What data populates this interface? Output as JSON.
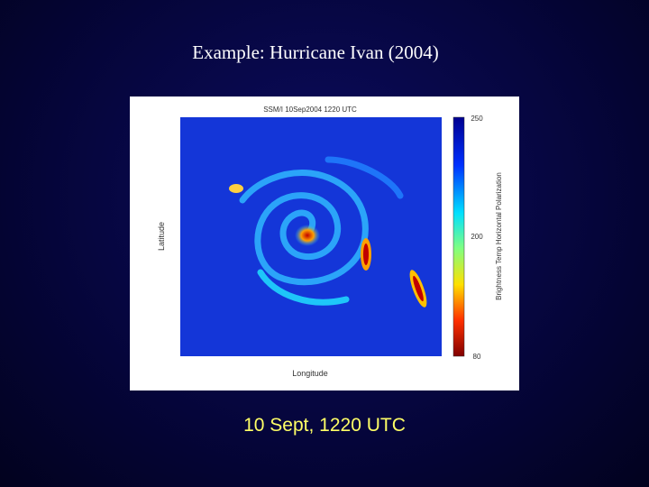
{
  "title": "Example: Hurricane Ivan (2004)",
  "figure": {
    "title": "SSM/I 10Sep2004 1220 UTC",
    "y_label": "Latitude",
    "x_label": "Longitude",
    "colorbar_label": "Brightness Temp Horizontal Polarization",
    "colorbar_ticks": [
      "250",
      "200",
      "80"
    ]
  },
  "caption": "10 Sept, 1220 UTC"
}
